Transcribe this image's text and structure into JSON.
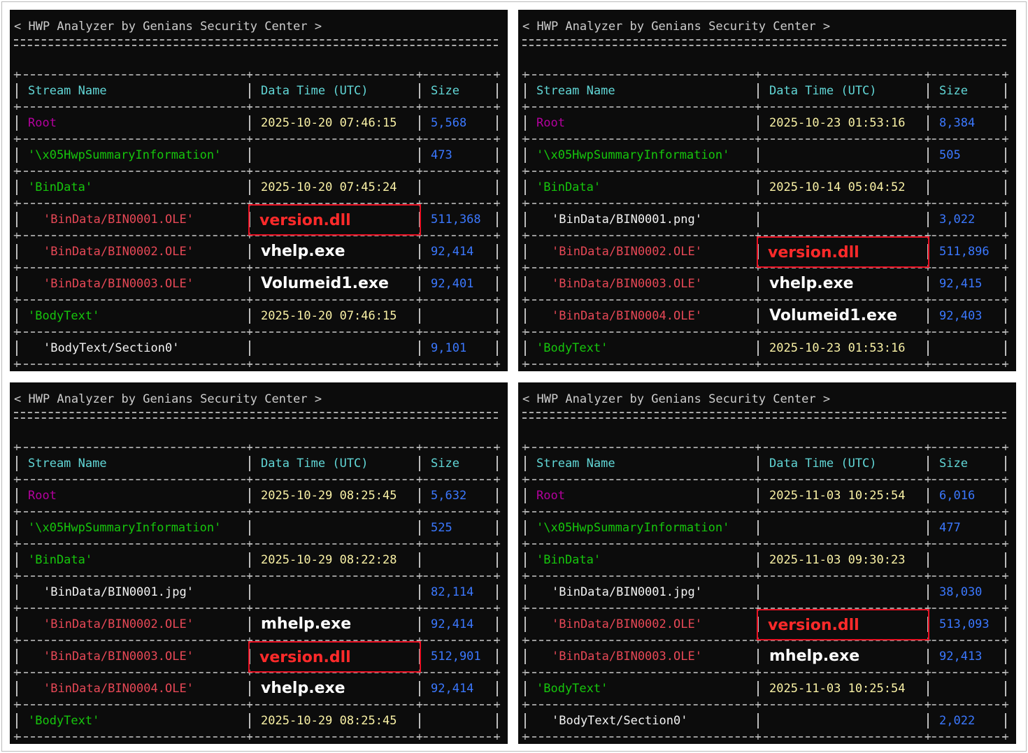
{
  "colors": {
    "highlight_box": "#e81123",
    "background": "#0c0c0c"
  },
  "panels": [
    {
      "title": "< HWP Analyzer by Genians Security Center >",
      "headers": [
        "Stream Name",
        "Data Time (UTC)",
        "Size"
      ],
      "rows": [
        {
          "name": "Root",
          "type": "root",
          "time": "2025-10-20 07:46:15",
          "size": "5,568"
        },
        {
          "name": "'\\x05HwpSummaryInformation'",
          "type": "stor",
          "time": "",
          "size": "473"
        },
        {
          "name": "'BinData'",
          "type": "stor",
          "time": "2025-10-20 07:45:24",
          "size": ""
        },
        {
          "name": "'BinData/BIN0001.OLE'",
          "type": "ole",
          "file": "version.dll",
          "highlight": true,
          "size": "511,368"
        },
        {
          "name": "'BinData/BIN0002.OLE'",
          "type": "ole",
          "file": "vhelp.exe",
          "size": "92,414"
        },
        {
          "name": "'BinData/BIN0003.OLE'",
          "type": "ole",
          "file": "Volumeid1.exe",
          "size": "92,401"
        },
        {
          "name": "'BodyText'",
          "type": "stor",
          "time": "2025-10-20 07:46:15",
          "size": ""
        },
        {
          "name": "'BodyText/Section0'",
          "type": "plain",
          "time": "",
          "size": "9,101"
        }
      ]
    },
    {
      "title": "< HWP Analyzer by Genians Security Center >",
      "headers": [
        "Stream Name",
        "Data Time (UTC)",
        "Size"
      ],
      "rows": [
        {
          "name": "Root",
          "type": "root",
          "time": "2025-10-23 01:53:16",
          "size": "8,384"
        },
        {
          "name": "'\\x05HwpSummaryInformation'",
          "type": "stor",
          "time": "",
          "size": "505"
        },
        {
          "name": "'BinData'",
          "type": "stor",
          "time": "2025-10-14 05:04:52",
          "size": ""
        },
        {
          "name": "'BinData/BIN0001.png'",
          "type": "plain",
          "time": "",
          "size": "3,022"
        },
        {
          "name": "'BinData/BIN0002.OLE'",
          "type": "ole",
          "file": "version.dll",
          "highlight": true,
          "size": "511,896"
        },
        {
          "name": "'BinData/BIN0003.OLE'",
          "type": "ole",
          "file": "vhelp.exe",
          "size": "92,415"
        },
        {
          "name": "'BinData/BIN0004.OLE'",
          "type": "ole",
          "file": "Volumeid1.exe",
          "size": "92,403"
        },
        {
          "name": "'BodyText'",
          "type": "stor",
          "time": "2025-10-23 01:53:16",
          "size": ""
        }
      ]
    },
    {
      "title": "< HWP Analyzer by Genians Security Center >",
      "headers": [
        "Stream Name",
        "Data Time (UTC)",
        "Size"
      ],
      "rows": [
        {
          "name": "Root",
          "type": "root",
          "time": "2025-10-29 08:25:45",
          "size": "5,632"
        },
        {
          "name": "'\\x05HwpSummaryInformation'",
          "type": "stor",
          "time": "",
          "size": "525"
        },
        {
          "name": "'BinData'",
          "type": "stor",
          "time": "2025-10-29 08:22:28",
          "size": ""
        },
        {
          "name": "'BinData/BIN0001.jpg'",
          "type": "plain",
          "time": "",
          "size": "82,114"
        },
        {
          "name": "'BinData/BIN0002.OLE'",
          "type": "ole",
          "file": "mhelp.exe",
          "size": "92,414"
        },
        {
          "name": "'BinData/BIN0003.OLE'",
          "type": "ole",
          "file": "version.dll",
          "highlight": true,
          "size": "512,901"
        },
        {
          "name": "'BinData/BIN0004.OLE'",
          "type": "ole",
          "file": "vhelp.exe",
          "size": "92,414"
        },
        {
          "name": "'BodyText'",
          "type": "stor",
          "time": "2025-10-29 08:25:45",
          "size": ""
        }
      ]
    },
    {
      "title": "< HWP Analyzer by Genians Security Center >",
      "headers": [
        "Stream Name",
        "Data Time (UTC)",
        "Size"
      ],
      "rows": [
        {
          "name": "Root",
          "type": "root",
          "time": "2025-11-03 10:25:54",
          "size": "6,016"
        },
        {
          "name": "'\\x05HwpSummaryInformation'",
          "type": "stor",
          "time": "",
          "size": "477"
        },
        {
          "name": "'BinData'",
          "type": "stor",
          "time": "2025-11-03 09:30:23",
          "size": ""
        },
        {
          "name": "'BinData/BIN0001.jpg'",
          "type": "plain",
          "time": "",
          "size": "38,030"
        },
        {
          "name": "'BinData/BIN0002.OLE'",
          "type": "ole",
          "file": "version.dll",
          "highlight": true,
          "size": "513,093"
        },
        {
          "name": "'BinData/BIN0003.OLE'",
          "type": "ole",
          "file": "mhelp.exe",
          "size": "92,413"
        },
        {
          "name": "'BodyText'",
          "type": "stor",
          "time": "2025-11-03 10:25:54",
          "size": ""
        },
        {
          "name": "'BodyText/Section0'",
          "type": "plain",
          "time": "",
          "size": "2,022"
        }
      ]
    }
  ]
}
